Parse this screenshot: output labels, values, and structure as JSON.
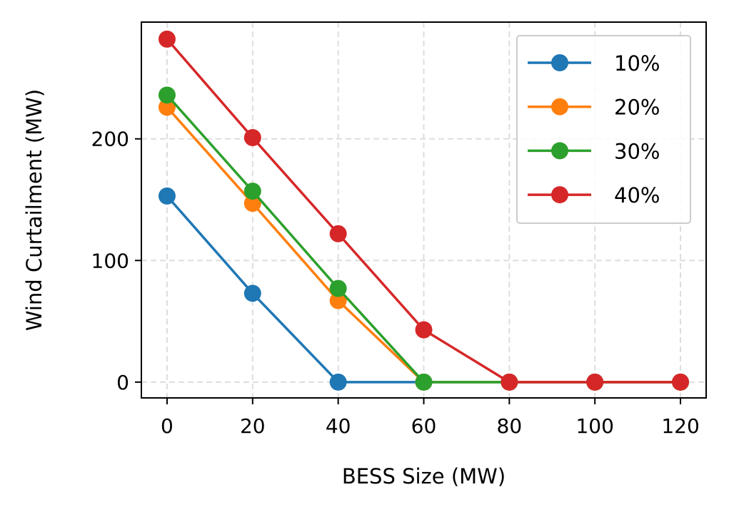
{
  "chart_data": {
    "type": "line",
    "title": "",
    "xlabel": "BESS Size (MW)",
    "ylabel": "Wind Curtailment (MW)",
    "x": [
      0,
      20,
      40,
      60,
      80,
      100,
      120
    ],
    "xlim": [
      -6,
      126
    ],
    "ylim": [
      -13,
      296
    ],
    "xticks": [
      0,
      20,
      40,
      60,
      80,
      100,
      120
    ],
    "yticks": [
      0,
      100,
      200
    ],
    "grid": true,
    "legend_position": "top-right",
    "series": [
      {
        "name": "10%",
        "color": "#1f77b4",
        "values": [
          153,
          73,
          0,
          0,
          0,
          0,
          0
        ]
      },
      {
        "name": "20%",
        "color": "#ff7f0e",
        "values": [
          226,
          147,
          67,
          0,
          0,
          0,
          0
        ]
      },
      {
        "name": "30%",
        "color": "#2ca02c",
        "values": [
          236,
          157,
          77,
          0,
          0,
          0,
          0
        ]
      },
      {
        "name": "40%",
        "color": "#d62728",
        "values": [
          282,
          201,
          122,
          43,
          0,
          0,
          0
        ]
      }
    ]
  }
}
